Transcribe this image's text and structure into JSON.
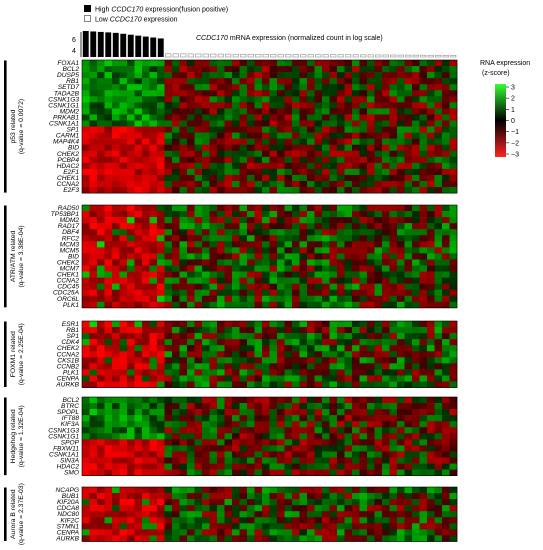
{
  "legend": {
    "high_prefix": "High ",
    "high_gene": "CCDC170",
    "high_suffix": " expression(fusion positive)",
    "low_prefix": "Low ",
    "low_gene": "CCDC170",
    "low_suffix": " expression"
  },
  "mrna_bar": {
    "title_gene": "CCDC170",
    "title_rest": " mRNA expression (normalized count in log scale)",
    "axis_ticks": [
      "6",
      "4"
    ],
    "high_values": [
      6.4,
      6.35,
      6.3,
      6.25,
      6.2,
      6.1,
      6.0,
      5.9,
      5.8,
      5.7,
      5.6
    ],
    "low_count": 39
  },
  "colorbar": {
    "title_line1": "RNA expression",
    "title_line2": "(z-score)",
    "ticks": [
      "3",
      "2",
      "1",
      "0",
      "−1",
      "−2",
      "−3"
    ],
    "colors": [
      "#33ff33",
      "#000000",
      "#ff2222"
    ]
  },
  "heatmap": {
    "columns": 50,
    "high_columns": 11,
    "blocks": [
      {
        "label_line1": "p53 related",
        "label_line2": "(q-value = 0.0072)",
        "genes": [
          "FOXA1",
          "BCL2",
          "DUSP5",
          "RB1",
          "SETD7",
          "TADA2B",
          "CSNK1G3",
          "CSNK1G1",
          "MDM2",
          "PRKAB1",
          "CSNK1A1",
          "SP1",
          "CARM1",
          "MAP4K4",
          "BID",
          "CHEK2",
          "PCBP4",
          "HDAC2",
          "E2F1",
          "CHEK1",
          "CCNA2",
          "E2F3"
        ]
      },
      {
        "label_line1": "ATR/ATM related",
        "label_line2": "(q-value = 3.38E-04)",
        "genes": [
          "RAD50",
          "TP53BP1",
          "MDM2",
          "RAD17",
          "DBF4",
          "RFC2",
          "MCM3",
          "MCM5",
          "BID",
          "CHEK2",
          "MCM7",
          "CHEK1",
          "CCNA2",
          "CDC45",
          "CDC25A",
          "ORC6L",
          "PLK1"
        ]
      },
      {
        "label_line1": "FOXM1 related",
        "label_line2": "(q-value = 2.25E-04)",
        "genes": [
          "ESR1",
          "RB1",
          "SP1",
          "CDK4",
          "CHEK2",
          "CCNA2",
          "CKS1B",
          "CCNB2",
          "PLK1",
          "CENPA",
          "AURKB"
        ]
      },
      {
        "label_line1": "Hedgehog related",
        "label_line2": "(q-value = 1.32E-04)",
        "genes": [
          "BCL2",
          "BTRC",
          "SPOPL",
          "IFT88",
          "KIF3A",
          "CSNK1G3",
          "CSNK1G1",
          "SPOP",
          "FBXW11",
          "CSNK1A1",
          "SIN3A",
          "HDAC2",
          "SMO"
        ]
      },
      {
        "label_line1": "Aurora B related",
        "label_line2": "(q-value = 2.37E-03)",
        "genes": [
          "NCAPG",
          "BUB1",
          "KIF20A",
          "CDCA8",
          "NDC80",
          "KIF2C",
          "STMN1",
          "CENPA",
          "AURKB"
        ]
      }
    ]
  }
}
